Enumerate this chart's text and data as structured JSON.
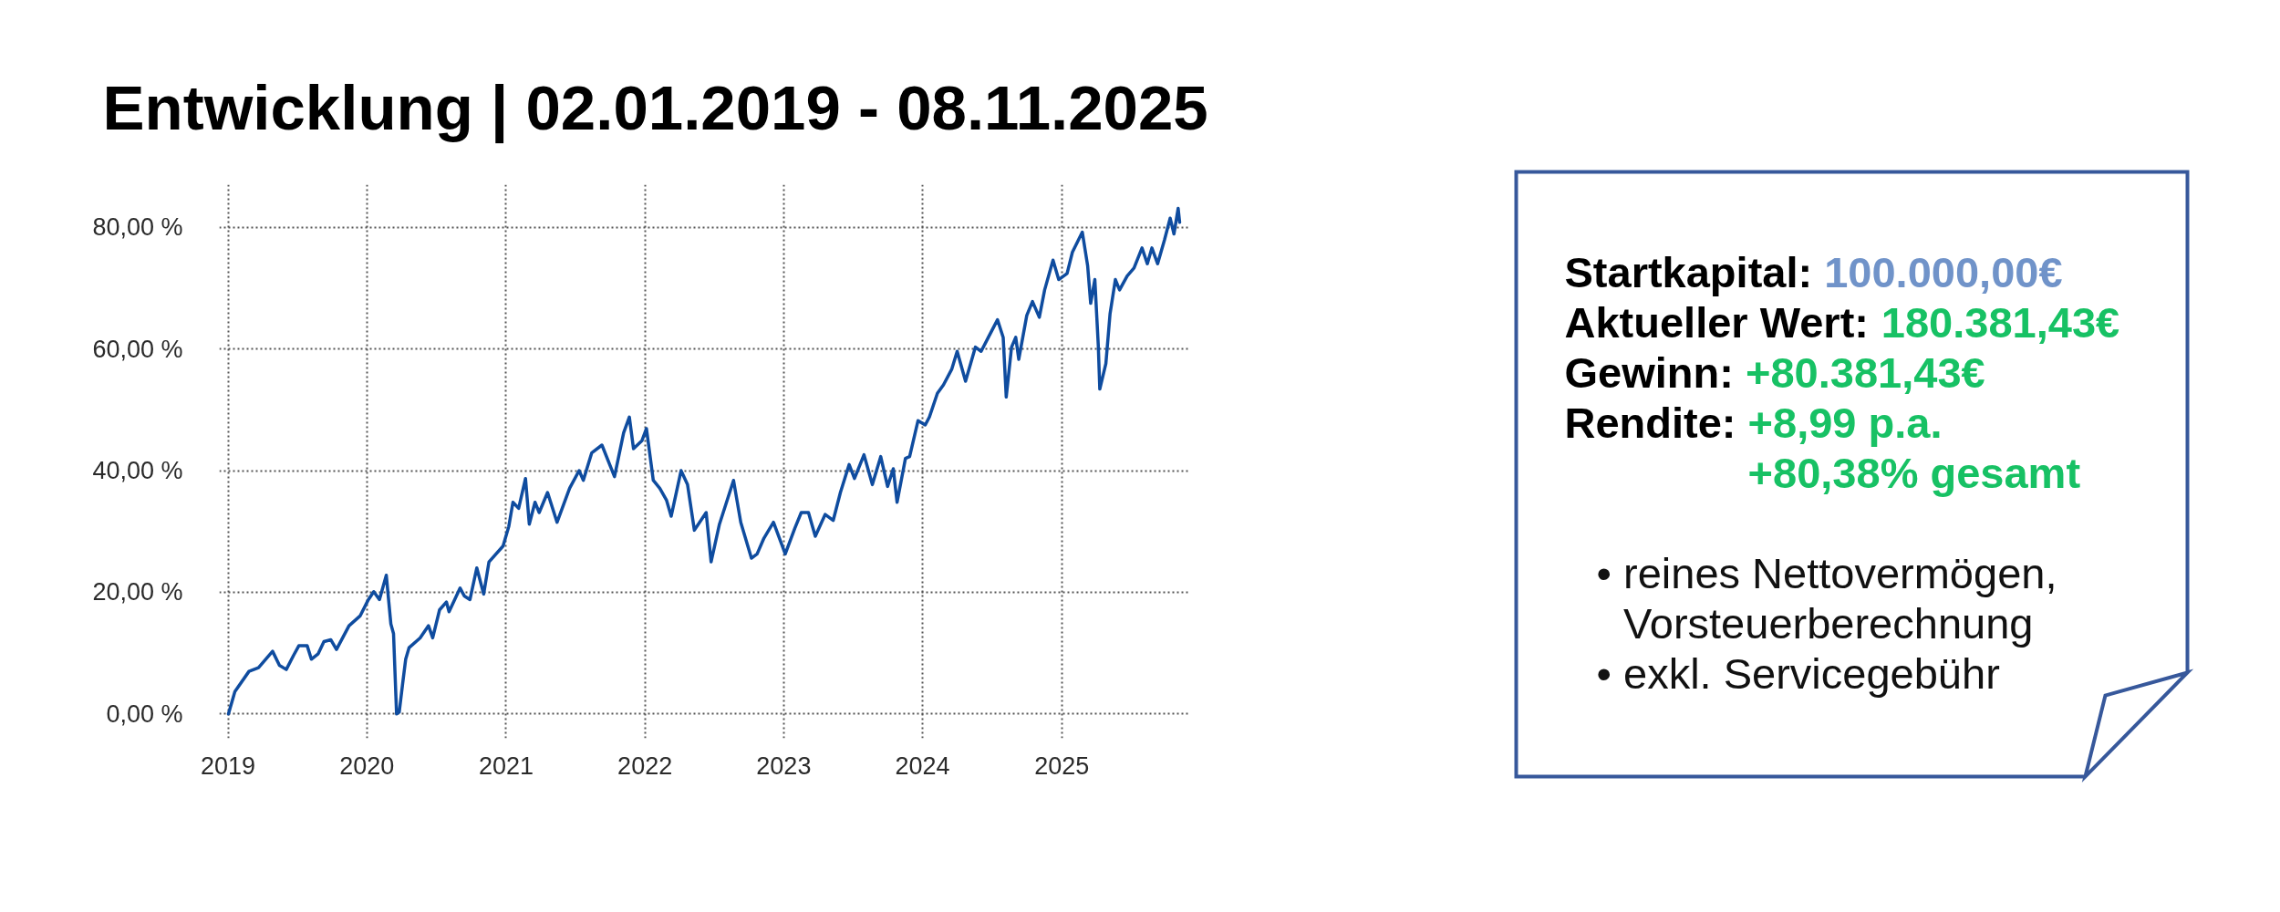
{
  "chart_data": [
    {
      "type": "line",
      "title": "Entwicklung | 02.01.2019 - 08.11.2025",
      "x": [
        "2019-01-02",
        "2019-01-19",
        "2019-02-25",
        "2019-03-22",
        "2019-04-10",
        "2019-04-28",
        "2019-05-16",
        "2019-06-03",
        "2019-06-22",
        "2019-07-06",
        "2019-07-28",
        "2019-08-08",
        "2019-08-26",
        "2019-09-10",
        "2019-09-28",
        "2019-10-13",
        "2019-11-15",
        "2019-12-14",
        "2020-01-05",
        "2020-01-19",
        "2020-02-03",
        "2020-02-21",
        "2020-03-04",
        "2020-03-11",
        "2020-03-19",
        "2020-03-26",
        "2020-04-04",
        "2020-04-12",
        "2020-04-21",
        "2020-05-20",
        "2020-06-11",
        "2020-06-22",
        "2020-07-10",
        "2020-07-28",
        "2020-08-04",
        "2020-09-02",
        "2020-09-13",
        "2020-09-28",
        "2020-10-16",
        "2020-11-03",
        "2020-11-17",
        "2020-12-24",
        "2021-01-08",
        "2021-01-19",
        "2021-02-03",
        "2021-02-21",
        "2021-03-03",
        "2021-03-18",
        "2021-03-29",
        "2021-04-20",
        "2021-05-15",
        "2021-06-17",
        "2021-07-12",
        "2021-07-23",
        "2021-08-14",
        "2021-09-10",
        "2021-10-13",
        "2021-11-06",
        "2021-11-21",
        "2021-12-02",
        "2021-12-24",
        "2022-01-05",
        "2022-01-23",
        "2022-02-09",
        "2022-02-27",
        "2022-03-11",
        "2022-04-06",
        "2022-04-23",
        "2022-05-11",
        "2022-06-11",
        "2022-06-24",
        "2022-07-16",
        "2022-08-22",
        "2022-09-10",
        "2022-10-08",
        "2022-10-23",
        "2022-11-10",
        "2022-12-05",
        "2023-01-05",
        "2023-01-30",
        "2023-02-16",
        "2023-03-07",
        "2023-03-25",
        "2023-04-20",
        "2023-05-11",
        "2023-05-30",
        "2023-06-22",
        "2023-07-06",
        "2023-07-31",
        "2023-08-22",
        "2023-09-13",
        "2023-10-01",
        "2023-10-16",
        "2023-10-26",
        "2023-11-17",
        "2023-11-28",
        "2023-12-20",
        "2024-01-08",
        "2024-01-19",
        "2024-02-09",
        "2024-02-25",
        "2024-03-18",
        "2024-04-01",
        "2024-04-23",
        "2024-05-19",
        "2024-06-03",
        "2024-06-22",
        "2024-07-16",
        "2024-07-31",
        "2024-08-08",
        "2024-08-22",
        "2024-09-02",
        "2024-09-10",
        "2024-10-01",
        "2024-10-16",
        "2024-11-03",
        "2024-11-17",
        "2024-12-09",
        "2024-12-24",
        "2025-01-15",
        "2025-01-29",
        "2025-02-24",
        "2025-03-10",
        "2025-03-18",
        "2025-03-29",
        "2025-04-07",
        "2025-04-11",
        "2025-04-27",
        "2025-05-08",
        "2025-05-22",
        "2025-06-02",
        "2025-06-22",
        "2025-07-10",
        "2025-07-31",
        "2025-08-14",
        "2025-08-26",
        "2025-09-10",
        "2025-09-28",
        "2025-10-13",
        "2025-10-23",
        "2025-11-03",
        "2025-11-07"
      ],
      "series": [
        {
          "color": "#0f4c9f",
          "values": [
            0.0,
            3.7,
            7.0,
            7.6,
            9.0,
            10.3,
            8.0,
            7.3,
            9.6,
            11.2,
            11.2,
            9.0,
            9.9,
            11.9,
            12.2,
            10.6,
            14.5,
            16.1,
            18.8,
            20.1,
            18.8,
            22.8,
            14.8,
            13.2,
            0.0,
            0.3,
            5.0,
            9.0,
            10.9,
            12.5,
            14.5,
            12.5,
            17.1,
            18.4,
            16.8,
            20.7,
            19.4,
            18.8,
            24.0,
            19.7,
            25.0,
            27.6,
            30.8,
            34.8,
            33.8,
            38.7,
            31.2,
            34.8,
            33.1,
            36.4,
            31.5,
            37.1,
            40.0,
            38.4,
            42.9,
            44.2,
            39.0,
            46.2,
            48.8,
            43.6,
            44.9,
            46.9,
            38.4,
            37.1,
            35.1,
            32.5,
            40.0,
            37.7,
            30.2,
            33.1,
            25.0,
            31.2,
            38.4,
            31.5,
            25.6,
            26.3,
            28.9,
            31.5,
            26.3,
            30.5,
            33.1,
            33.1,
            29.2,
            32.8,
            31.8,
            36.4,
            41.0,
            38.7,
            42.6,
            37.7,
            42.3,
            37.4,
            40.3,
            34.8,
            42.0,
            42.3,
            48.2,
            47.5,
            48.8,
            52.7,
            54.1,
            56.7,
            59.6,
            54.7,
            60.3,
            59.6,
            61.9,
            64.8,
            61.9,
            52.1,
            60.3,
            61.9,
            58.3,
            65.5,
            67.8,
            65.2,
            69.7,
            74.6,
            71.4,
            72.4,
            75.9,
            79.2,
            73.7,
            67.5,
            71.4,
            60.6,
            53.4,
            57.6,
            65.8,
            71.4,
            69.7,
            72.0,
            73.3,
            76.6,
            74.0,
            76.6,
            74.0,
            77.9,
            81.5,
            78.9,
            83.1,
            80.8
          ]
        }
      ],
      "xlim": [
        "2018-12-09",
        "2025-12-01"
      ],
      "ylim": [
        -4,
        87
      ],
      "xticks": [
        "2019",
        "2020",
        "2021",
        "2022",
        "2023",
        "2024",
        "2025"
      ],
      "yticks": [
        {
          "value": 0,
          "label": "0,00 %"
        },
        {
          "value": 20,
          "label": "20,00 %"
        },
        {
          "value": 40,
          "label": "40,00 %"
        },
        {
          "value": 60,
          "label": "60,00 %"
        },
        {
          "value": 80,
          "label": "80,00 %"
        }
      ],
      "grid": true
    },
    {
      "type": "other",
      "annotations": [
        "Startkapital: 100.000,00€",
        "Aktueller Wert: 180.381,43€",
        "Gewinn: +80.381,43€",
        "Rendite: +8,99 p.a.\n+80,38% gesamt",
        "• reines Nettovermögen,\nVorsteuerberechnung",
        "• exkl. Servicegebühr"
      ]
    }
  ]
}
